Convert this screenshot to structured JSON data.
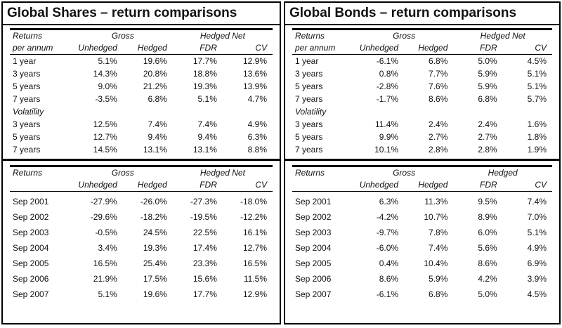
{
  "panels": [
    {
      "title": "Global Shares – return comparisons",
      "tables": [
        {
          "header_rows": [
            [
              "Returns",
              "Gross",
              "Hedged Net"
            ],
            [
              "per annum",
              "Unhedged",
              "Hedged",
              "FDR",
              "CV"
            ]
          ],
          "rows": [
            [
              "1 year",
              "5.1%",
              "19.6%",
              "17.7%",
              "12.9%"
            ],
            [
              "3 years",
              "14.3%",
              "20.8%",
              "18.8%",
              "13.6%"
            ],
            [
              "5 years",
              "9.0%",
              "21.2%",
              "19.3%",
              "13.9%"
            ],
            [
              "7 years",
              "-3.5%",
              "6.8%",
              "5.1%",
              "4.7%"
            ],
            [
              "Volatility"
            ],
            [
              "3 years",
              "12.5%",
              "7.4%",
              "7.4%",
              "4.9%"
            ],
            [
              "5 years",
              "12.7%",
              "9.4%",
              "9.4%",
              "6.3%"
            ],
            [
              "7 years",
              "14.5%",
              "13.1%",
              "13.1%",
              "8.8%"
            ]
          ]
        },
        {
          "header_rows": [
            [
              "Returns",
              "Gross",
              "Hedged Net"
            ],
            [
              "Unhedged",
              "Hedged",
              "FDR",
              "CV"
            ]
          ],
          "rows": [
            [
              "Sep 2001",
              "-27.9%",
              "-26.0%",
              "-27.3%",
              "-18.0%"
            ],
            [
              "Sep 2002",
              "-29.6%",
              "-18.2%",
              "-19.5%",
              "-12.2%"
            ],
            [
              "Sep 2003",
              "-0.5%",
              "24.5%",
              "22.5%",
              "16.1%"
            ],
            [
              "Sep 2004",
              "3.4%",
              "19.3%",
              "17.4%",
              "12.7%"
            ],
            [
              "Sep 2005",
              "16.5%",
              "25.4%",
              "23.3%",
              "16.5%"
            ],
            [
              "Sep 2006",
              "21.9%",
              "17.5%",
              "15.6%",
              "11.5%"
            ],
            [
              "Sep 2007",
              "5.1%",
              "19.6%",
              "17.7%",
              "12.9%"
            ]
          ]
        }
      ]
    },
    {
      "title": "Global Bonds – return comparisons",
      "tables": [
        {
          "header_rows": [
            [
              "Returns",
              "Gross",
              "Hedged Net"
            ],
            [
              "per annum",
              "Unhedged",
              "Hedged",
              "FDR",
              "CV"
            ]
          ],
          "rows": [
            [
              "1 year",
              "-6.1%",
              "6.8%",
              "5.0%",
              "4.5%"
            ],
            [
              "3 years",
              "0.8%",
              "7.7%",
              "5.9%",
              "5.1%"
            ],
            [
              "5 years",
              "-2.8%",
              "7.6%",
              "5.9%",
              "5.1%"
            ],
            [
              "7 years",
              "-1.7%",
              "8.6%",
              "6.8%",
              "5.7%"
            ],
            [
              "Volatility"
            ],
            [
              "3 years",
              "11.4%",
              "2.4%",
              "2.4%",
              "1.6%"
            ],
            [
              "5 years",
              "9.9%",
              "2.7%",
              "2.7%",
              "1.8%"
            ],
            [
              "7 years",
              "10.1%",
              "2.8%",
              "2.8%",
              "1.9%"
            ]
          ]
        },
        {
          "header_rows": [
            [
              "Returns",
              "Gross",
              "Hedged"
            ],
            [
              "Unhedged",
              "Hedged",
              "FDR",
              "CV"
            ]
          ],
          "rows": [
            [
              "Sep 2001",
              "6.3%",
              "11.3%",
              "9.5%",
              "7.4%"
            ],
            [
              "Sep 2002",
              "-4.2%",
              "10.7%",
              "8.9%",
              "7.0%"
            ],
            [
              "Sep 2003",
              "-9.7%",
              "7.8%",
              "6.0%",
              "5.1%"
            ],
            [
              "Sep 2004",
              "-6.0%",
              "7.4%",
              "5.6%",
              "4.9%"
            ],
            [
              "Sep 2005",
              "0.4%",
              "10.4%",
              "8.6%",
              "6.9%"
            ],
            [
              "Sep 2006",
              "8.6%",
              "5.9%",
              "4.2%",
              "3.9%"
            ],
            [
              "Sep 2007",
              "-6.1%",
              "6.8%",
              "5.0%",
              "4.5%"
            ]
          ]
        }
      ]
    }
  ]
}
